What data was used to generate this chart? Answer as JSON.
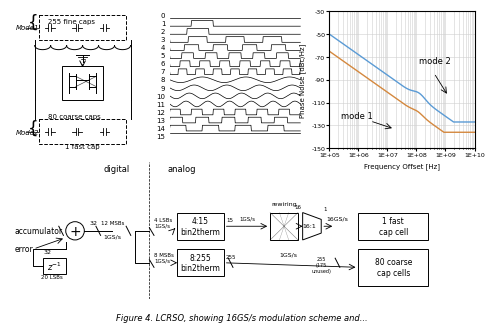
{
  "title_caption": "Figure 4. LCRSO, showing 16GS/s modulation scheme and...",
  "plot_xlim_log": [
    100000.0,
    10000000000.0
  ],
  "plot_ylim": [
    -150,
    -30
  ],
  "plot_yticks": [
    -150,
    -130,
    -110,
    -90,
    -70,
    -50,
    -30
  ],
  "plot_xtick_labels": [
    "1E+05",
    "1E+06",
    "1E+07",
    "1E+08",
    "1E+09",
    "1E+10"
  ],
  "plot_ylabel": "Phase Noise [dBc/Hz]",
  "plot_xlabel": "Frequency Offset [Hz]",
  "mode1_label": "mode 1",
  "mode2_label": "mode 2",
  "mode1_color": "#d4883e",
  "mode2_color": "#5b9bd5",
  "bg_color": "#ffffff",
  "grid_color": "#d0d0d0"
}
